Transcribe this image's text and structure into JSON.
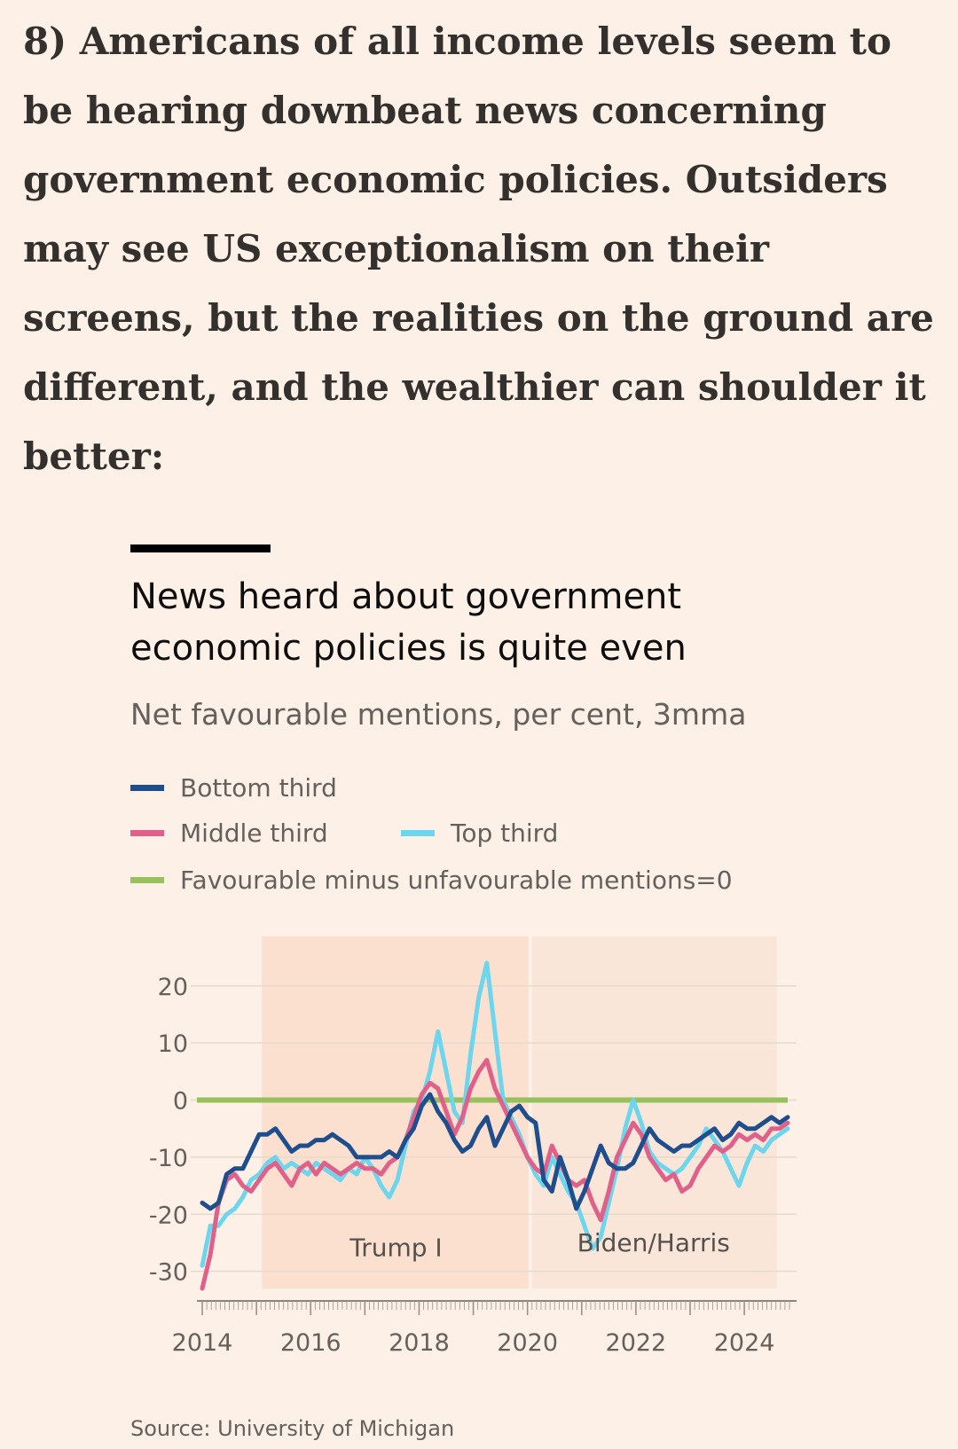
{
  "intro_text": "8) Americans of all income levels seem to be hearing downbeat news concerning government economic policies. Outsiders may see US exceptionalism on their screens, but the realities on the ground are different, and the wealthier can shoulder it better:",
  "chart_data": {
    "type": "line",
    "title": "News heard about government economic policies is quite even",
    "subtitle": "Net favourable mentions, per cent, 3mma",
    "source": "Source: University of Michigan",
    "legend": [
      {
        "label": "Bottom third",
        "color": "#1f4e8c"
      },
      {
        "label": "Middle third",
        "color": "#e0608a"
      },
      {
        "label": "Top third",
        "color": "#6dd6ec"
      },
      {
        "label": "Favourable minus unfavourable mentions=0",
        "color": "#98c15d"
      }
    ],
    "ylim": [
      -33,
      24
    ],
    "xlim": [
      2014,
      2024.8
    ],
    "y_ticks": [
      20,
      10,
      0,
      -10,
      -20,
      -30
    ],
    "x_ticks": [
      2014,
      2016,
      2018,
      2020,
      2022,
      2024
    ],
    "reference_line": 0,
    "shaded_periods": [
      {
        "label": "Trump I",
        "start": 2015.1,
        "end": 2020.05
      },
      {
        "label": "Biden/Harris",
        "start": 2020.05,
        "end": 2024.6
      }
    ],
    "series": [
      {
        "name": "Bottom third",
        "color": "#1f4e8c",
        "points": [
          [
            2014.0,
            -18
          ],
          [
            2014.15,
            -19
          ],
          [
            2014.3,
            -18
          ],
          [
            2014.45,
            -13
          ],
          [
            2014.6,
            -12
          ],
          [
            2014.75,
            -12
          ],
          [
            2014.9,
            -9
          ],
          [
            2015.05,
            -6
          ],
          [
            2015.2,
            -6
          ],
          [
            2015.35,
            -5
          ],
          [
            2015.5,
            -7
          ],
          [
            2015.65,
            -9
          ],
          [
            2015.8,
            -8
          ],
          [
            2015.95,
            -8
          ],
          [
            2016.1,
            -7
          ],
          [
            2016.25,
            -7
          ],
          [
            2016.4,
            -6
          ],
          [
            2016.55,
            -7
          ],
          [
            2016.7,
            -8
          ],
          [
            2016.85,
            -10
          ],
          [
            2017.0,
            -10
          ],
          [
            2017.15,
            -10
          ],
          [
            2017.3,
            -10
          ],
          [
            2017.45,
            -9
          ],
          [
            2017.6,
            -10
          ],
          [
            2017.75,
            -7
          ],
          [
            2017.9,
            -5
          ],
          [
            2018.05,
            -1
          ],
          [
            2018.2,
            1
          ],
          [
            2018.35,
            -2
          ],
          [
            2018.5,
            -4
          ],
          [
            2018.65,
            -7
          ],
          [
            2018.8,
            -9
          ],
          [
            2018.95,
            -8
          ],
          [
            2019.1,
            -5
          ],
          [
            2019.25,
            -3
          ],
          [
            2019.4,
            -8
          ],
          [
            2019.55,
            -5
          ],
          [
            2019.7,
            -2
          ],
          [
            2019.85,
            -1
          ],
          [
            2020.0,
            -3
          ],
          [
            2020.15,
            -4
          ],
          [
            2020.3,
            -14
          ],
          [
            2020.45,
            -16
          ],
          [
            2020.6,
            -10
          ],
          [
            2020.75,
            -14
          ],
          [
            2020.9,
            -19
          ],
          [
            2021.05,
            -16
          ],
          [
            2021.2,
            -12
          ],
          [
            2021.35,
            -8
          ],
          [
            2021.5,
            -11
          ],
          [
            2021.65,
            -12
          ],
          [
            2021.8,
            -12
          ],
          [
            2021.95,
            -11
          ],
          [
            2022.1,
            -8
          ],
          [
            2022.25,
            -5
          ],
          [
            2022.4,
            -7
          ],
          [
            2022.55,
            -8
          ],
          [
            2022.7,
            -9
          ],
          [
            2022.85,
            -8
          ],
          [
            2023.0,
            -8
          ],
          [
            2023.15,
            -7
          ],
          [
            2023.3,
            -6
          ],
          [
            2023.45,
            -5
          ],
          [
            2023.6,
            -7
          ],
          [
            2023.75,
            -6
          ],
          [
            2023.9,
            -4
          ],
          [
            2024.05,
            -5
          ],
          [
            2024.2,
            -5
          ],
          [
            2024.35,
            -4
          ],
          [
            2024.5,
            -3
          ],
          [
            2024.65,
            -4
          ],
          [
            2024.8,
            -3
          ]
        ]
      },
      {
        "name": "Middle third",
        "color": "#e0608a",
        "points": [
          [
            2014.0,
            -33
          ],
          [
            2014.15,
            -27
          ],
          [
            2014.3,
            -18
          ],
          [
            2014.45,
            -14
          ],
          [
            2014.6,
            -13
          ],
          [
            2014.75,
            -15
          ],
          [
            2014.9,
            -16
          ],
          [
            2015.05,
            -14
          ],
          [
            2015.2,
            -12
          ],
          [
            2015.35,
            -11
          ],
          [
            2015.5,
            -13
          ],
          [
            2015.65,
            -15
          ],
          [
            2015.8,
            -12
          ],
          [
            2015.95,
            -11
          ],
          [
            2016.1,
            -13
          ],
          [
            2016.25,
            -11
          ],
          [
            2016.4,
            -12
          ],
          [
            2016.55,
            -13
          ],
          [
            2016.7,
            -12
          ],
          [
            2016.85,
            -11
          ],
          [
            2017.0,
            -12
          ],
          [
            2017.15,
            -12
          ],
          [
            2017.3,
            -13
          ],
          [
            2017.45,
            -11
          ],
          [
            2017.6,
            -10
          ],
          [
            2017.75,
            -7
          ],
          [
            2017.9,
            -3
          ],
          [
            2018.05,
            1
          ],
          [
            2018.2,
            3
          ],
          [
            2018.35,
            2
          ],
          [
            2018.5,
            -2
          ],
          [
            2018.65,
            -6
          ],
          [
            2018.8,
            -3
          ],
          [
            2018.95,
            2
          ],
          [
            2019.1,
            5
          ],
          [
            2019.25,
            7
          ],
          [
            2019.4,
            2
          ],
          [
            2019.55,
            -1
          ],
          [
            2019.7,
            -4
          ],
          [
            2019.85,
            -7
          ],
          [
            2020.0,
            -10
          ],
          [
            2020.15,
            -12
          ],
          [
            2020.3,
            -13
          ],
          [
            2020.45,
            -8
          ],
          [
            2020.6,
            -11
          ],
          [
            2020.75,
            -14
          ],
          [
            2020.9,
            -15
          ],
          [
            2021.05,
            -14
          ],
          [
            2021.2,
            -18
          ],
          [
            2021.35,
            -21
          ],
          [
            2021.5,
            -16
          ],
          [
            2021.65,
            -10
          ],
          [
            2021.8,
            -7
          ],
          [
            2021.95,
            -4
          ],
          [
            2022.1,
            -6
          ],
          [
            2022.25,
            -10
          ],
          [
            2022.4,
            -12
          ],
          [
            2022.55,
            -14
          ],
          [
            2022.7,
            -13
          ],
          [
            2022.85,
            -16
          ],
          [
            2023.0,
            -15
          ],
          [
            2023.15,
            -12
          ],
          [
            2023.3,
            -10
          ],
          [
            2023.45,
            -8
          ],
          [
            2023.6,
            -9
          ],
          [
            2023.75,
            -8
          ],
          [
            2023.9,
            -6
          ],
          [
            2024.05,
            -7
          ],
          [
            2024.2,
            -6
          ],
          [
            2024.35,
            -7
          ],
          [
            2024.5,
            -5
          ],
          [
            2024.65,
            -5
          ],
          [
            2024.8,
            -4
          ]
        ]
      },
      {
        "name": "Top third",
        "color": "#6dd6ec",
        "points": [
          [
            2014.0,
            -29
          ],
          [
            2014.15,
            -22
          ],
          [
            2014.3,
            -22
          ],
          [
            2014.45,
            -20
          ],
          [
            2014.6,
            -19
          ],
          [
            2014.75,
            -17
          ],
          [
            2014.9,
            -14
          ],
          [
            2015.05,
            -13
          ],
          [
            2015.2,
            -11
          ],
          [
            2015.35,
            -10
          ],
          [
            2015.5,
            -12
          ],
          [
            2015.65,
            -11
          ],
          [
            2015.8,
            -12
          ],
          [
            2015.95,
            -13
          ],
          [
            2016.1,
            -11
          ],
          [
            2016.25,
            -12
          ],
          [
            2016.4,
            -13
          ],
          [
            2016.55,
            -14
          ],
          [
            2016.7,
            -12
          ],
          [
            2016.85,
            -13
          ],
          [
            2017.0,
            -10
          ],
          [
            2017.15,
            -12
          ],
          [
            2017.3,
            -15
          ],
          [
            2017.45,
            -17
          ],
          [
            2017.6,
            -14
          ],
          [
            2017.75,
            -8
          ],
          [
            2017.9,
            -2
          ],
          [
            2018.05,
            0
          ],
          [
            2018.2,
            5
          ],
          [
            2018.35,
            12
          ],
          [
            2018.5,
            5
          ],
          [
            2018.65,
            -2
          ],
          [
            2018.8,
            -4
          ],
          [
            2018.95,
            8
          ],
          [
            2019.1,
            18
          ],
          [
            2019.25,
            24
          ],
          [
            2019.4,
            12
          ],
          [
            2019.55,
            0
          ],
          [
            2019.7,
            -3
          ],
          [
            2019.85,
            -6
          ],
          [
            2020.0,
            -10
          ],
          [
            2020.15,
            -13
          ],
          [
            2020.3,
            -15
          ],
          [
            2020.45,
            -10
          ],
          [
            2020.6,
            -13
          ],
          [
            2020.75,
            -16
          ],
          [
            2020.9,
            -18
          ],
          [
            2021.05,
            -22
          ],
          [
            2021.2,
            -26
          ],
          [
            2021.35,
            -24
          ],
          [
            2021.5,
            -18
          ],
          [
            2021.65,
            -12
          ],
          [
            2021.8,
            -5
          ],
          [
            2021.95,
            0
          ],
          [
            2022.1,
            -4
          ],
          [
            2022.25,
            -9
          ],
          [
            2022.4,
            -11
          ],
          [
            2022.55,
            -12
          ],
          [
            2022.7,
            -13
          ],
          [
            2022.85,
            -12
          ],
          [
            2023.0,
            -10
          ],
          [
            2023.15,
            -8
          ],
          [
            2023.3,
            -5
          ],
          [
            2023.45,
            -7
          ],
          [
            2023.6,
            -9
          ],
          [
            2023.75,
            -12
          ],
          [
            2023.9,
            -15
          ],
          [
            2024.05,
            -11
          ],
          [
            2024.2,
            -8
          ],
          [
            2024.35,
            -9
          ],
          [
            2024.5,
            -7
          ],
          [
            2024.65,
            -6
          ],
          [
            2024.8,
            -5
          ]
        ]
      }
    ]
  }
}
